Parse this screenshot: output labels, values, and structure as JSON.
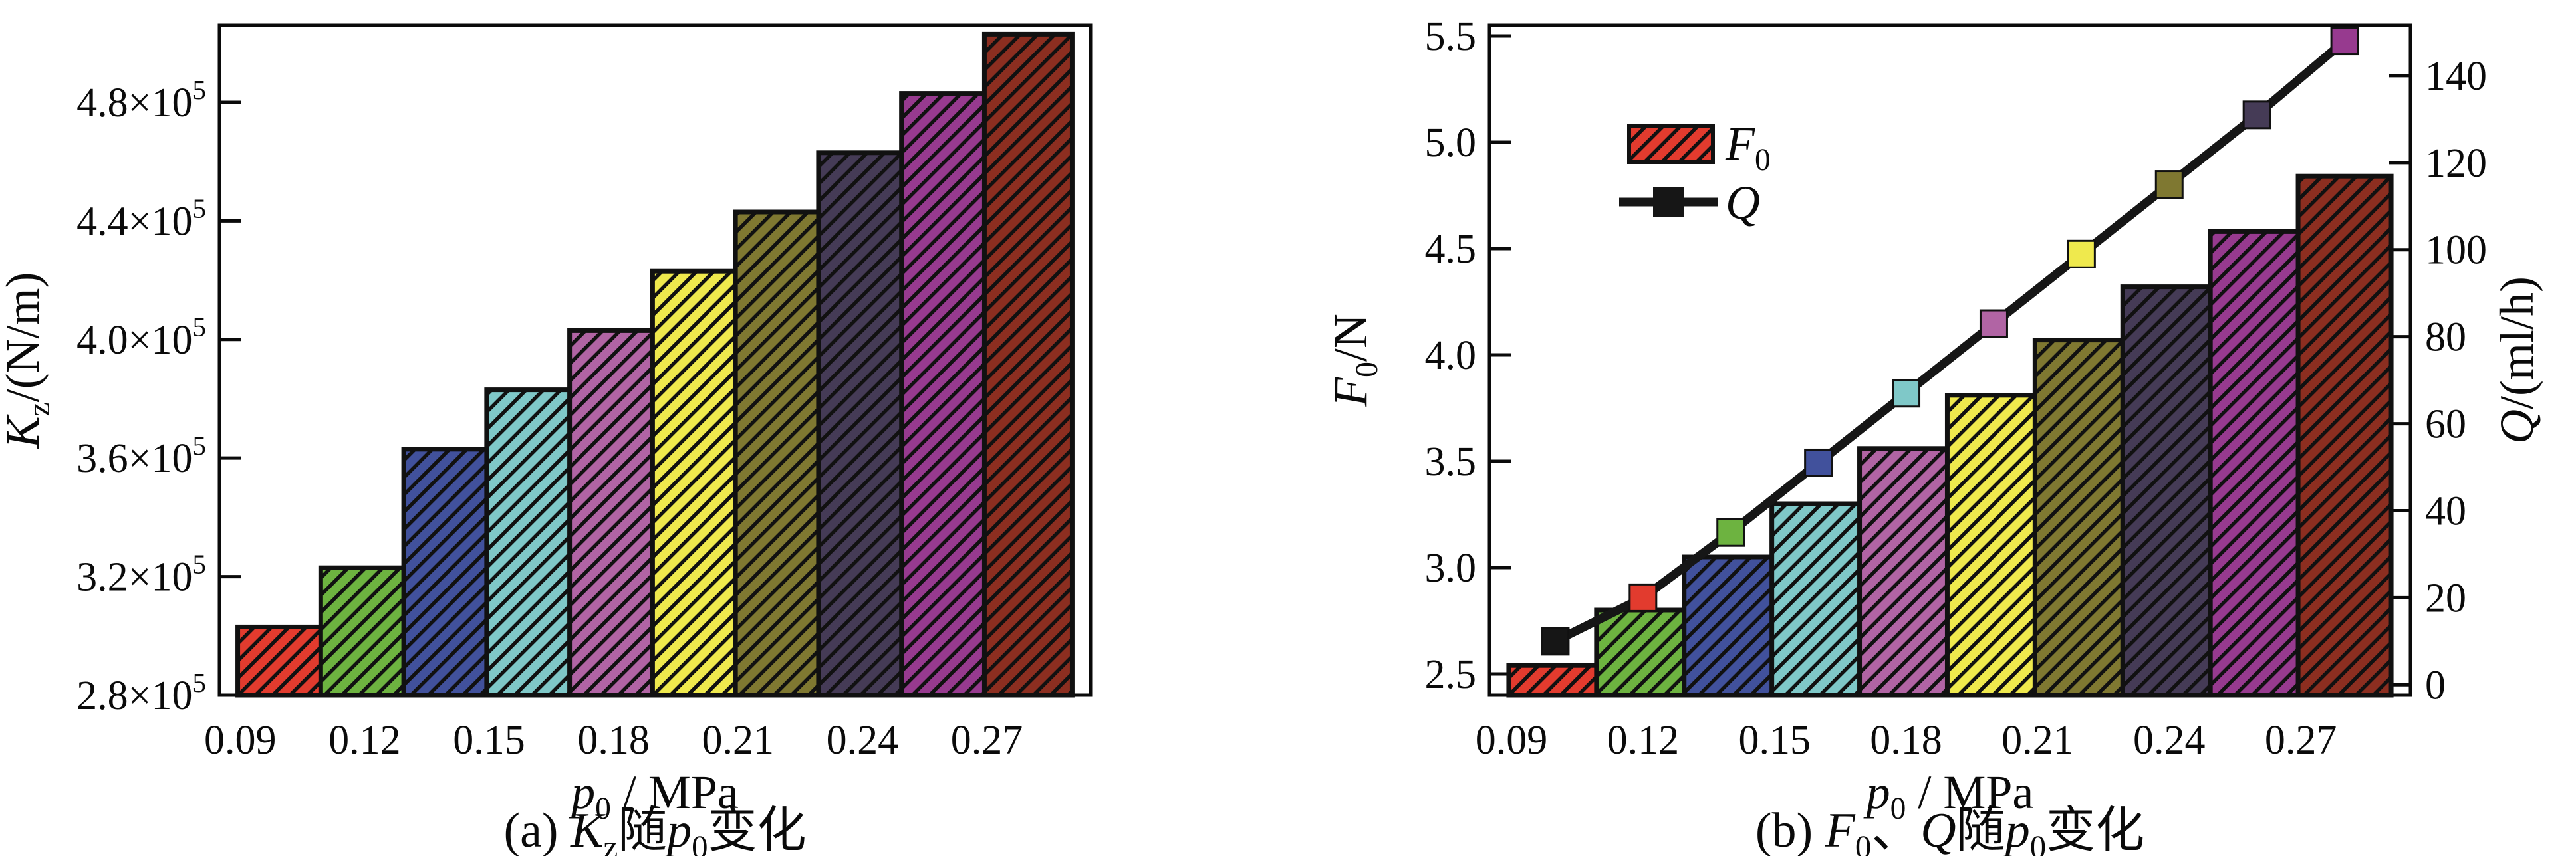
{
  "figure": {
    "background": "#ffffff",
    "text_color": "#0a0a0a",
    "axis_color": "#0a0a0a"
  },
  "chart_data": [
    {
      "type": "bar",
      "panel": "a",
      "caption_runs": [
        [
          "",
          "(a) "
        ],
        [
          "i",
          "K"
        ],
        [
          "sub",
          "z"
        ],
        [
          "",
          "随"
        ],
        [
          "i",
          "p"
        ],
        [
          "sub",
          "0"
        ],
        [
          "",
          "变化"
        ]
      ],
      "xlabel_runs": [
        [
          "i",
          "p"
        ],
        [
          "sub",
          "0"
        ],
        [
          "",
          " / MPa"
        ]
      ],
      "ylabel_runs": [
        [
          "i",
          "K"
        ],
        [
          "sub",
          "z"
        ],
        [
          "",
          "/(N/m)"
        ]
      ],
      "x": [
        0.1,
        0.12,
        0.14,
        0.16,
        0.18,
        0.2,
        0.22,
        0.24,
        0.26,
        0.28
      ],
      "values": [
        303000,
        323000,
        363000,
        383000,
        403000,
        423000,
        443000,
        463000,
        483000,
        503000
      ],
      "bar_colors": [
        "#e23b2e",
        "#6db340",
        "#41519c",
        "#7fc8c8",
        "#b164a4",
        "#efe94d",
        "#7f7831",
        "#453b56",
        "#973a8f",
        "#8c2e20"
      ],
      "edge_color": "#111111",
      "xlim": [
        0.085,
        0.295
      ],
      "ylim": [
        280000,
        506000
      ],
      "xticks": [
        {
          "v": 0.09,
          "label": "0.09"
        },
        {
          "v": 0.12,
          "label": "0.12"
        },
        {
          "v": 0.15,
          "label": "0.15"
        },
        {
          "v": 0.18,
          "label": "0.18"
        },
        {
          "v": 0.21,
          "label": "0.21"
        },
        {
          "v": 0.24,
          "label": "0.24"
        },
        {
          "v": 0.27,
          "label": "0.27"
        }
      ],
      "xminors": [
        0.105,
        0.135,
        0.165,
        0.195,
        0.225,
        0.255,
        0.285
      ],
      "yticks": [
        {
          "v": 280000,
          "runs": [
            [
              "",
              "2.8×10"
            ],
            [
              "sup",
              "5"
            ]
          ]
        },
        {
          "v": 320000,
          "runs": [
            [
              "",
              "3.2×10"
            ],
            [
              "sup",
              "5"
            ]
          ]
        },
        {
          "v": 360000,
          "runs": [
            [
              "",
              "3.6×10"
            ],
            [
              "sup",
              "5"
            ]
          ]
        },
        {
          "v": 400000,
          "runs": [
            [
              "",
              "4.0×10"
            ],
            [
              "sup",
              "5"
            ]
          ]
        },
        {
          "v": 440000,
          "runs": [
            [
              "",
              "4.4×10"
            ],
            [
              "sup",
              "5"
            ]
          ]
        },
        {
          "v": 480000,
          "runs": [
            [
              "",
              "4.8×10"
            ],
            [
              "sup",
              "5"
            ]
          ]
        }
      ],
      "grid": false
    },
    {
      "type": "bar+line",
      "panel": "b",
      "caption_runs": [
        [
          "",
          "(b) "
        ],
        [
          "i",
          "F"
        ],
        [
          "sub",
          "0"
        ],
        [
          "",
          "、"
        ],
        [
          "i",
          "Q"
        ],
        [
          "",
          "随"
        ],
        [
          "i",
          "p"
        ],
        [
          "sub",
          "0"
        ],
        [
          "",
          "变化"
        ]
      ],
      "xlabel_runs": [
        [
          "i",
          "p"
        ],
        [
          "sub",
          "0"
        ],
        [
          "",
          " / MPa"
        ]
      ],
      "ylabel_left_runs": [
        [
          "i",
          "F"
        ],
        [
          "sub",
          "0"
        ],
        [
          "",
          "/N"
        ]
      ],
      "ylabel_right_runs": [
        [
          "i",
          "Q"
        ],
        [
          "",
          "/(ml/h)"
        ]
      ],
      "x": [
        0.1,
        0.12,
        0.14,
        0.16,
        0.18,
        0.2,
        0.22,
        0.24,
        0.26,
        0.28
      ],
      "series": [
        {
          "name": "F0",
          "name_runs": [
            [
              "i",
              "F"
            ],
            [
              "sub",
              "0"
            ]
          ],
          "type": "bar",
          "axis": "left",
          "values": [
            2.54,
            2.8,
            3.05,
            3.3,
            3.56,
            3.81,
            4.07,
            4.32,
            4.58,
            4.84
          ]
        },
        {
          "name": "Q",
          "name_runs": [
            [
              "i",
              "Q"
            ]
          ],
          "type": "line",
          "axis": "right",
          "values": [
            10,
            20,
            35,
            51,
            67,
            83,
            99,
            115,
            131,
            148
          ],
          "line_color": "#161616",
          "marker_colors": [
            "#161616",
            "#e23b2e",
            "#6db340",
            "#41519c",
            "#7fc8c8",
            "#b164a4",
            "#efe94d",
            "#7f7831",
            "#453b56",
            "#973a8f"
          ]
        }
      ],
      "bar_colors": [
        "#e23b2e",
        "#6db340",
        "#41519c",
        "#7fc8c8",
        "#b164a4",
        "#efe94d",
        "#7f7831",
        "#453b56",
        "#973a8f",
        "#8c2e20"
      ],
      "edge_color": "#111111",
      "xlim": [
        0.085,
        0.295
      ],
      "ylim_left": [
        2.4,
        5.55
      ],
      "ylim_right": [
        -2.4,
        151.6
      ],
      "xticks": [
        {
          "v": 0.09,
          "label": "0.09"
        },
        {
          "v": 0.12,
          "label": "0.12"
        },
        {
          "v": 0.15,
          "label": "0.15"
        },
        {
          "v": 0.18,
          "label": "0.18"
        },
        {
          "v": 0.21,
          "label": "0.21"
        },
        {
          "v": 0.24,
          "label": "0.24"
        },
        {
          "v": 0.27,
          "label": "0.27"
        }
      ],
      "xminors": [
        0.105,
        0.135,
        0.165,
        0.195,
        0.225,
        0.255,
        0.285
      ],
      "yticks_left": [
        {
          "v": 2.5,
          "label": "2.5"
        },
        {
          "v": 3.0,
          "label": "3.0"
        },
        {
          "v": 3.5,
          "label": "3.5"
        },
        {
          "v": 4.0,
          "label": "4.0"
        },
        {
          "v": 4.5,
          "label": "4.5"
        },
        {
          "v": 5.0,
          "label": "5.0"
        },
        {
          "v": 5.5,
          "label": "5.5"
        }
      ],
      "yticks_right": [
        {
          "v": 0,
          "label": "0"
        },
        {
          "v": 20,
          "label": "20"
        },
        {
          "v": 40,
          "label": "40"
        },
        {
          "v": 60,
          "label": "60"
        },
        {
          "v": 80,
          "label": "80"
        },
        {
          "v": 100,
          "label": "100"
        },
        {
          "v": 120,
          "label": "120"
        },
        {
          "v": 140,
          "label": "140"
        }
      ],
      "legend": {
        "entries": [
          {
            "key": "F0",
            "swatch": "hatched-red-box"
          },
          {
            "key": "Q",
            "swatch": "black-square-on-line"
          }
        ]
      },
      "grid": false
    }
  ]
}
